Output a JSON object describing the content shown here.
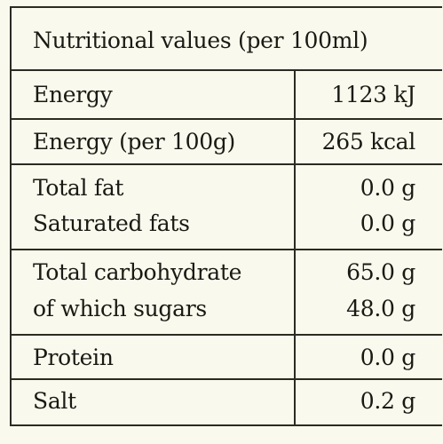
{
  "table": {
    "header": "Nutritional values (per 100ml)",
    "groups": [
      {
        "items": [
          {
            "name": "Energy",
            "value": "1123 kJ"
          }
        ]
      },
      {
        "items": [
          {
            "name": "Energy (per 100g)",
            "value": "265 kcal"
          }
        ]
      },
      {
        "items": [
          {
            "name": "Total fat",
            "value": "0.0 g"
          },
          {
            "name": "Saturated fats",
            "value": "0.0 g"
          }
        ]
      },
      {
        "items": [
          {
            "name": "Total carbohydrate",
            "value": "65.0 g"
          },
          {
            "name": "of which sugars",
            "value": "48.0 g"
          }
        ]
      },
      {
        "items": [
          {
            "name": "Protein",
            "value": "0.0 g"
          }
        ]
      },
      {
        "items": [
          {
            "name": "Salt",
            "value": "0.2 g"
          }
        ]
      }
    ]
  }
}
